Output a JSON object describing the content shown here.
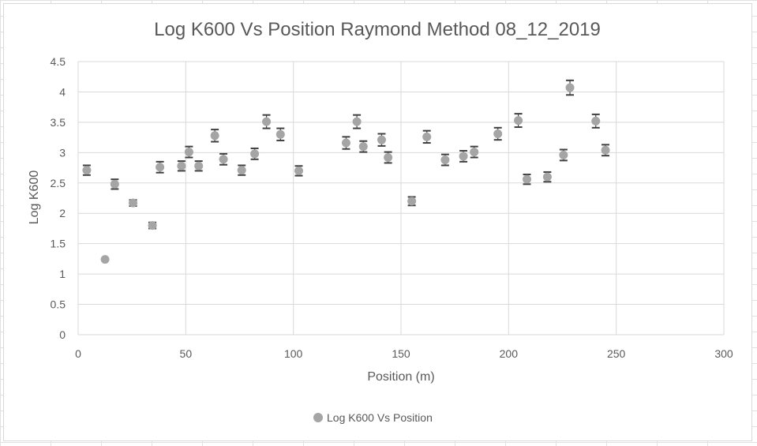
{
  "chart_data": {
    "type": "scatter",
    "title": "Log K600 Vs Position Raymond Method 08_12_2019",
    "xlabel": "Position (m)",
    "ylabel": "Log K600",
    "xlim": [
      0,
      300
    ],
    "ylim": [
      0,
      4.5
    ],
    "xticks": [
      "0",
      "50",
      "100",
      "150",
      "200",
      "250",
      "300"
    ],
    "yticks": [
      "0",
      "0.5",
      "1",
      "1.5",
      "2",
      "2.5",
      "3",
      "3.5",
      "4",
      "4.5"
    ],
    "grid": true,
    "legend_position": "bottom",
    "marker_color": "#a5a5a5",
    "errorbar_color": "#404040",
    "series": [
      {
        "name": "Log K600 Vs Position",
        "points": [
          {
            "x": 4,
            "y": 2.71,
            "err": 0.08
          },
          {
            "x": 12.5,
            "y": 1.24,
            "err": 0
          },
          {
            "x": 17,
            "y": 2.48,
            "err": 0.08
          },
          {
            "x": 25.5,
            "y": 2.17,
            "err": 0.05
          },
          {
            "x": 34.5,
            "y": 1.8,
            "err": 0.05
          },
          {
            "x": 38,
            "y": 2.76,
            "err": 0.09
          },
          {
            "x": 48,
            "y": 2.78,
            "err": 0.08
          },
          {
            "x": 51.5,
            "y": 3.01,
            "err": 0.09
          },
          {
            "x": 56,
            "y": 2.78,
            "err": 0.08
          },
          {
            "x": 63.5,
            "y": 3.28,
            "err": 0.1
          },
          {
            "x": 67.5,
            "y": 2.89,
            "err": 0.09
          },
          {
            "x": 76,
            "y": 2.71,
            "err": 0.08
          },
          {
            "x": 82,
            "y": 2.98,
            "err": 0.09
          },
          {
            "x": 87.5,
            "y": 3.51,
            "err": 0.11
          },
          {
            "x": 94,
            "y": 3.3,
            "err": 0.1
          },
          {
            "x": 102.5,
            "y": 2.7,
            "err": 0.08
          },
          {
            "x": 124.5,
            "y": 3.16,
            "err": 0.1
          },
          {
            "x": 129.5,
            "y": 3.51,
            "err": 0.11
          },
          {
            "x": 132.5,
            "y": 3.1,
            "err": 0.09
          },
          {
            "x": 141,
            "y": 3.21,
            "err": 0.1
          },
          {
            "x": 144,
            "y": 2.92,
            "err": 0.09
          },
          {
            "x": 155,
            "y": 2.2,
            "err": 0.07
          },
          {
            "x": 162,
            "y": 3.26,
            "err": 0.1
          },
          {
            "x": 170.5,
            "y": 2.88,
            "err": 0.09
          },
          {
            "x": 179,
            "y": 2.94,
            "err": 0.09
          },
          {
            "x": 184,
            "y": 3.01,
            "err": 0.09
          },
          {
            "x": 195,
            "y": 3.31,
            "err": 0.1
          },
          {
            "x": 204.5,
            "y": 3.53,
            "err": 0.11
          },
          {
            "x": 208.5,
            "y": 2.56,
            "err": 0.08
          },
          {
            "x": 218,
            "y": 2.6,
            "err": 0.08
          },
          {
            "x": 225.5,
            "y": 2.96,
            "err": 0.09
          },
          {
            "x": 228.5,
            "y": 4.07,
            "err": 0.12
          },
          {
            "x": 240.5,
            "y": 3.52,
            "err": 0.11
          },
          {
            "x": 245,
            "y": 3.04,
            "err": 0.09
          }
        ]
      }
    ]
  }
}
